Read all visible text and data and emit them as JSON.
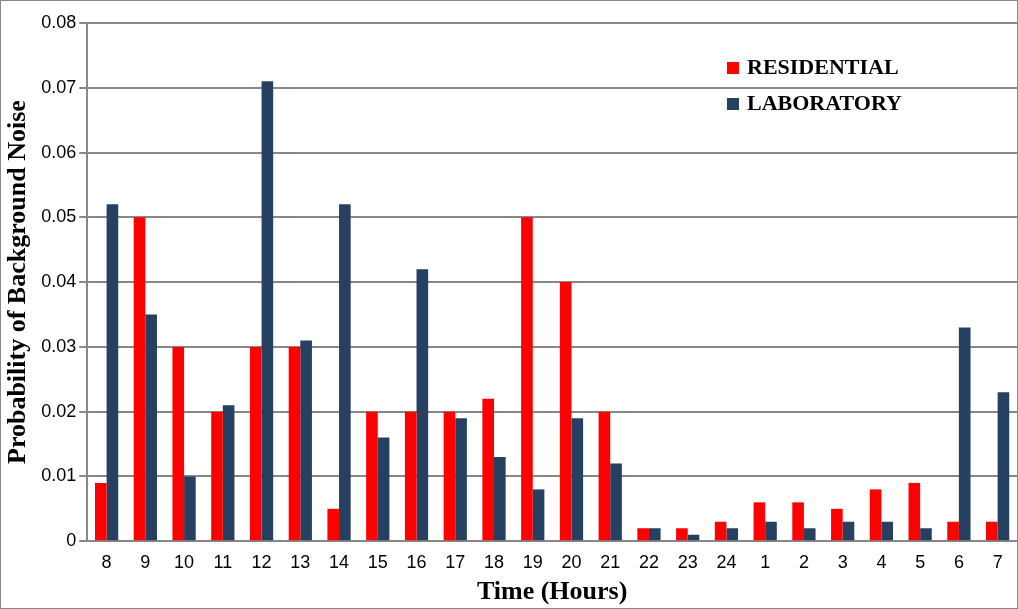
{
  "chart_data": {
    "type": "bar",
    "xlabel": "Time (Hours)",
    "ylabel": "Probability of Background Noise",
    "categories": [
      "8",
      "9",
      "10",
      "11",
      "12",
      "13",
      "14",
      "15",
      "16",
      "17",
      "18",
      "19",
      "20",
      "21",
      "22",
      "23",
      "24",
      "1",
      "2",
      "3",
      "4",
      "5",
      "6",
      "7"
    ],
    "series": [
      {
        "name": "RESIDENTIAL",
        "color": "#ff0000",
        "values": [
          0.009,
          0.05,
          0.03,
          0.02,
          0.03,
          0.03,
          0.005,
          0.02,
          0.02,
          0.02,
          0.022,
          0.05,
          0.04,
          0.02,
          0.002,
          0.002,
          0.003,
          0.006,
          0.006,
          0.005,
          0.008,
          0.009,
          0.003,
          0.003
        ]
      },
      {
        "name": "LABORATORY",
        "color": "#264061",
        "values": [
          0.052,
          0.035,
          0.01,
          0.021,
          0.071,
          0.031,
          0.052,
          0.016,
          0.042,
          0.019,
          0.013,
          0.008,
          0.019,
          0.012,
          0.002,
          0.001,
          0.002,
          0.003,
          0.002,
          0.003,
          0.003,
          0.002,
          0.033,
          0.023
        ]
      }
    ],
    "ylim": [
      0,
      0.08
    ],
    "yticks": [
      0,
      0.01,
      0.02,
      0.03,
      0.04,
      0.05,
      0.06,
      0.07,
      0.08
    ],
    "grid": "y",
    "legend": "top right"
  }
}
